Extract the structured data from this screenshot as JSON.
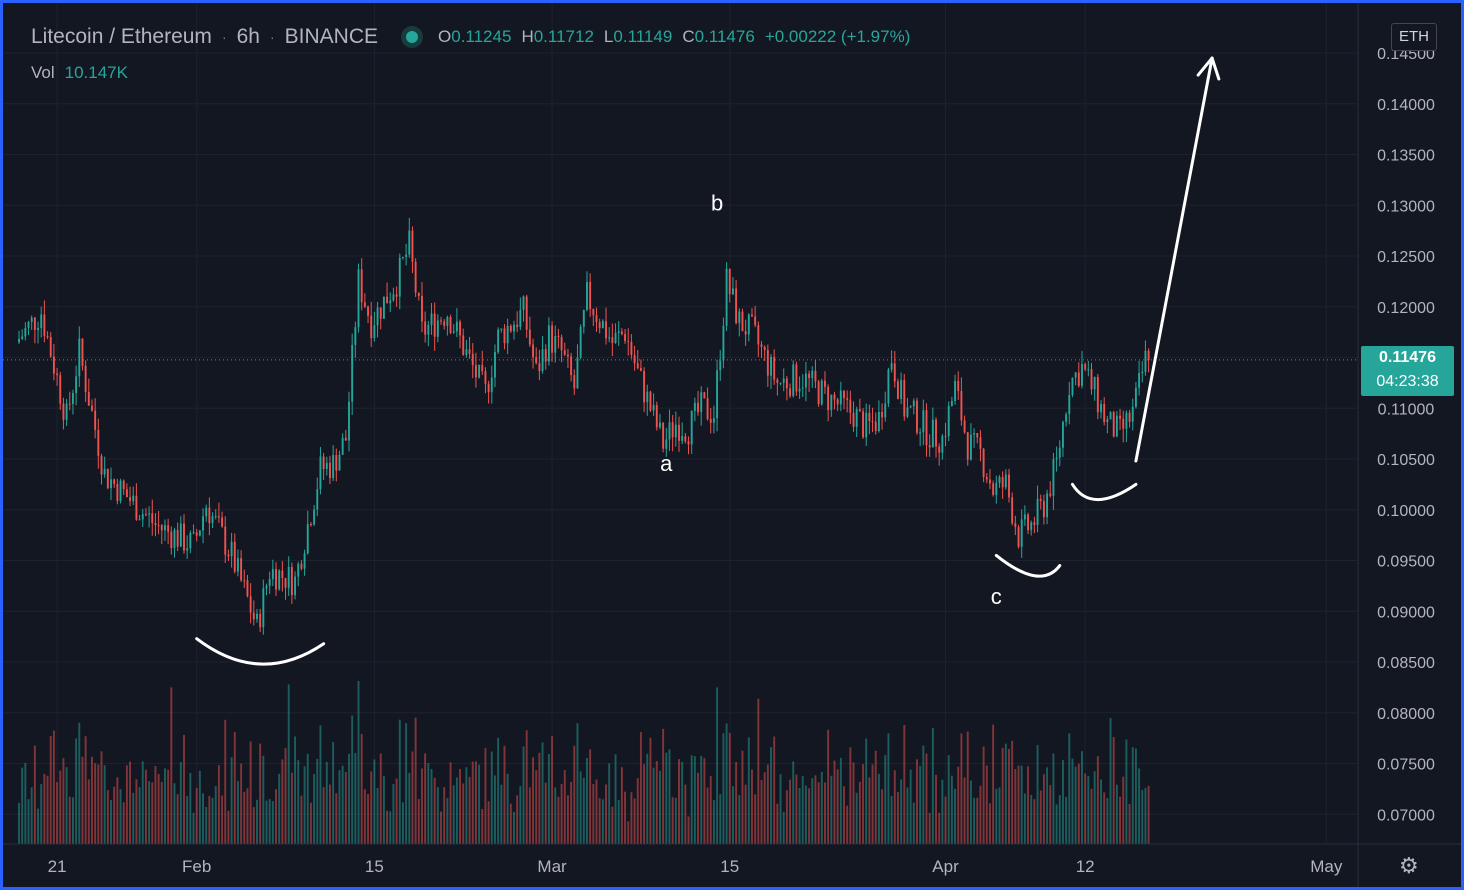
{
  "header": {
    "symbol": "Litecoin / Ethereum",
    "interval": "6h",
    "exchange": "BINANCE",
    "open_key": "O",
    "open": "0.11245",
    "high_key": "H",
    "high": "0.11712",
    "low_key": "L",
    "low": "0.11149",
    "close_key": "C",
    "close": "0.11476",
    "change": "+0.00222 (+1.97%)",
    "volume_label": "Vol",
    "volume_value": "10.147K"
  },
  "currency_button": "ETH",
  "last_price": {
    "price": "0.11476",
    "countdown": "04:23:38"
  },
  "settings_icon": "gear-icon",
  "colors": {
    "up": "#26a69a",
    "down": "#ef5350",
    "background": "#131722",
    "border": "#2962ff",
    "annotation": "#ffffff"
  },
  "chart_data": {
    "type": "candlestick",
    "y_axis": {
      "range": [
        0.0675,
        0.1455
      ],
      "ticks": [
        "0.14500",
        "0.14000",
        "0.13500",
        "0.13000",
        "0.12500",
        "0.12000",
        "0.11500",
        "0.11000",
        "0.10500",
        "0.10000",
        "0.09500",
        "0.09000",
        "0.08500",
        "0.08000",
        "0.07500",
        "0.07000"
      ]
    },
    "x_axis": {
      "range": [
        "2021-01-18",
        "2021-05-02"
      ],
      "ticks": [
        {
          "label": "21",
          "date": "2021-01-21"
        },
        {
          "label": "Feb",
          "date": "2021-02-01"
        },
        {
          "label": "15",
          "date": "2021-02-15"
        },
        {
          "label": "Mar",
          "date": "2021-03-01"
        },
        {
          "label": "15",
          "date": "2021-03-15"
        },
        {
          "label": "Apr",
          "date": "2021-04-01"
        },
        {
          "label": "12",
          "date": "2021-04-12"
        },
        {
          "label": "May",
          "date": "2021-05-01"
        }
      ]
    },
    "price_path": [
      [
        "2021-01-18",
        0.1165
      ],
      [
        "2021-01-20",
        0.1195
      ],
      [
        "2021-01-22",
        0.109
      ],
      [
        "2021-01-23",
        0.1155
      ],
      [
        "2021-01-25",
        0.1035
      ],
      [
        "2021-01-27",
        0.101
      ],
      [
        "2021-01-29",
        0.0985
      ],
      [
        "2021-02-01",
        0.0965
      ],
      [
        "2021-02-02",
        0.1005
      ],
      [
        "2021-02-04",
        0.0955
      ],
      [
        "2021-02-05",
        0.092
      ],
      [
        "2021-02-06",
        0.0885
      ],
      [
        "2021-02-07",
        0.094
      ],
      [
        "2021-02-09",
        0.093
      ],
      [
        "2021-02-10",
        0.0985
      ],
      [
        "2021-02-11",
        0.104
      ],
      [
        "2021-02-12",
        0.1045
      ],
      [
        "2021-02-13",
        0.107
      ],
      [
        "2021-02-14",
        0.1225
      ],
      [
        "2021-02-15",
        0.1185
      ],
      [
        "2021-02-17",
        0.1225
      ],
      [
        "2021-02-18",
        0.126
      ],
      [
        "2021-02-19",
        0.1175
      ],
      [
        "2021-02-21",
        0.1195
      ],
      [
        "2021-02-23",
        0.114
      ],
      [
        "2021-02-24",
        0.1115
      ],
      [
        "2021-02-25",
        0.117
      ],
      [
        "2021-02-27",
        0.1195
      ],
      [
        "2021-02-28",
        0.1135
      ],
      [
        "2021-03-01",
        0.117
      ],
      [
        "2021-03-02",
        0.1155
      ],
      [
        "2021-03-03",
        0.112
      ],
      [
        "2021-03-04",
        0.121
      ],
      [
        "2021-03-06",
        0.1165
      ],
      [
        "2021-03-07",
        0.1175
      ],
      [
        "2021-03-08",
        0.1135
      ],
      [
        "2021-03-09",
        0.11
      ],
      [
        "2021-03-10",
        0.1065
      ],
      [
        "2021-03-11",
        0.1085
      ],
      [
        "2021-03-12",
        0.108
      ],
      [
        "2021-03-13",
        0.11
      ],
      [
        "2021-03-14",
        0.1095
      ],
      [
        "2021-03-15",
        0.1225
      ],
      [
        "2021-03-16",
        0.1185
      ],
      [
        "2021-03-17",
        0.1175
      ],
      [
        "2021-03-19",
        0.1125
      ],
      [
        "2021-03-21",
        0.113
      ],
      [
        "2021-03-23",
        0.111
      ],
      [
        "2021-03-25",
        0.1095
      ],
      [
        "2021-03-26",
        0.108
      ],
      [
        "2021-03-27",
        0.109
      ],
      [
        "2021-03-28",
        0.115
      ],
      [
        "2021-03-29",
        0.11
      ],
      [
        "2021-03-30",
        0.109
      ],
      [
        "2021-03-31",
        0.1075
      ],
      [
        "2021-04-01",
        0.107
      ],
      [
        "2021-04-02",
        0.112
      ],
      [
        "2021-04-03",
        0.1065
      ],
      [
        "2021-04-04",
        0.1055
      ],
      [
        "2021-04-05",
        0.102
      ],
      [
        "2021-04-06",
        0.1025
      ],
      [
        "2021-04-07",
        0.0975
      ],
      [
        "2021-04-08",
        0.0985
      ],
      [
        "2021-04-09",
        0.1005
      ],
      [
        "2021-04-10",
        0.1045
      ],
      [
        "2021-04-11",
        0.1125
      ],
      [
        "2021-04-12",
        0.114
      ],
      [
        "2021-04-13",
        0.1115
      ],
      [
        "2021-04-14",
        0.1085
      ],
      [
        "2021-04-15",
        0.1075
      ],
      [
        "2021-04-16",
        0.1095
      ],
      [
        "2021-04-17",
        0.1148
      ]
    ],
    "volume_range_k": [
      0,
      50
    ],
    "annotations": [
      {
        "type": "text",
        "label": "a",
        "date": "2021-03-10",
        "price": 0.1038
      },
      {
        "type": "text",
        "label": "b",
        "date": "2021-03-14",
        "price": 0.1295
      },
      {
        "type": "text",
        "label": "c",
        "date": "2021-04-05",
        "price": 0.0907
      },
      {
        "type": "curve",
        "name": "bottom-1",
        "from": [
          "2021-02-01",
          0.0873
        ],
        "via": [
          "2021-02-06",
          0.0848
        ],
        "to": [
          "2021-02-11",
          0.0868
        ]
      },
      {
        "type": "curve",
        "name": "bottom-2",
        "from": [
          "2021-04-05",
          0.0955
        ],
        "via": [
          "2021-04-08",
          0.0935
        ],
        "to": [
          "2021-04-10",
          0.0945
        ]
      },
      {
        "type": "curve",
        "name": "bottom-3",
        "from": [
          "2021-04-11",
          0.1025
        ],
        "via": [
          "2021-04-13",
          0.101
        ],
        "to": [
          "2021-04-16",
          0.1025
        ]
      },
      {
        "type": "arrow",
        "name": "projection-arrow",
        "from": [
          "2021-04-16",
          0.1048
        ],
        "to": [
          "2021-04-22",
          0.1445
        ]
      }
    ]
  }
}
